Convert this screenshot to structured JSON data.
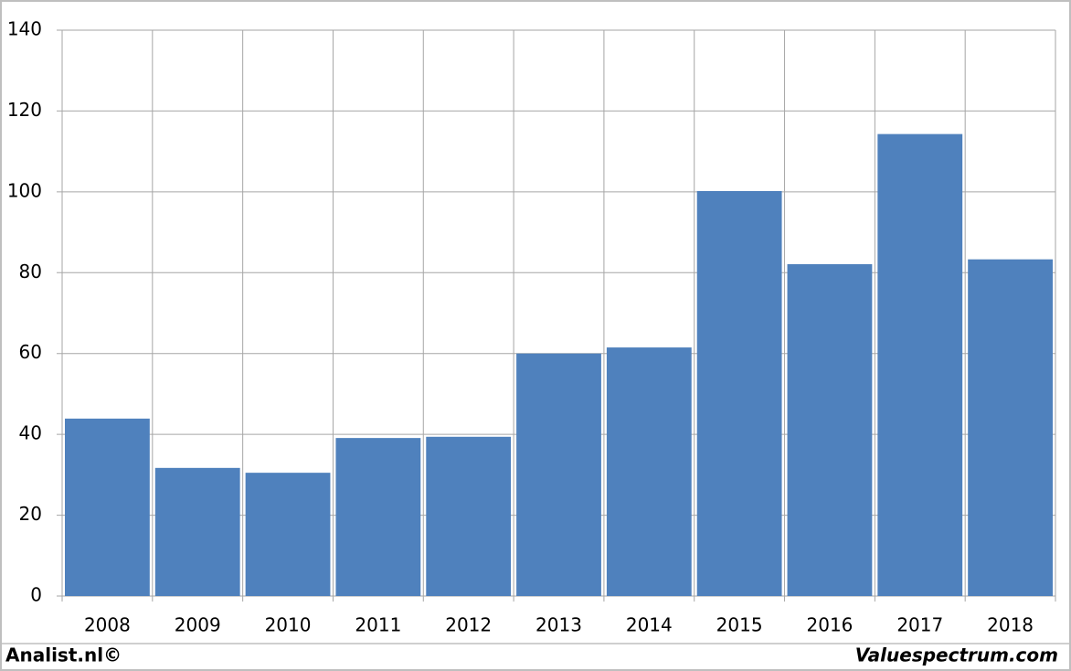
{
  "chart_data": {
    "type": "bar",
    "categories": [
      "2008",
      "2009",
      "2010",
      "2011",
      "2012",
      "2013",
      "2014",
      "2015",
      "2016",
      "2017",
      "2018"
    ],
    "values": [
      43.9,
      31.7,
      30.5,
      39.1,
      39.4,
      60,
      61.5,
      100.2,
      82.1,
      114.3,
      83.3
    ],
    "color": "#4f81bd",
    "ylim": [
      0,
      140
    ],
    "yticks": [
      0,
      20,
      40,
      60,
      80,
      100,
      120,
      140
    ],
    "grid": true
  },
  "footer": {
    "left": "Analist.nl©",
    "right": "Valuespectrum.com"
  }
}
